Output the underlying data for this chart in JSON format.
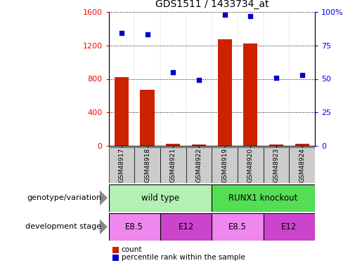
{
  "title": "GDS1511 / 1433734_at",
  "samples": [
    "GSM48917",
    "GSM48918",
    "GSM48921",
    "GSM48922",
    "GSM48919",
    "GSM48920",
    "GSM48923",
    "GSM48924"
  ],
  "counts": [
    820,
    670,
    30,
    20,
    1270,
    1220,
    20,
    30
  ],
  "percentiles": [
    84,
    83,
    55,
    49,
    98,
    97,
    51,
    53
  ],
  "bar_color": "#cc2200",
  "dot_color": "#0000cc",
  "left_ylim": [
    0,
    1600
  ],
  "right_ylim": [
    0,
    100
  ],
  "left_yticks": [
    0,
    400,
    800,
    1200,
    1600
  ],
  "right_yticks": [
    0,
    25,
    50,
    75,
    100
  ],
  "right_yticklabels": [
    "0",
    "25",
    "50",
    "75",
    "100%"
  ],
  "genotype_groups": [
    {
      "label": "wild type",
      "start": 0,
      "end": 4,
      "color": "#b3f0b3"
    },
    {
      "label": "RUNX1 knockout",
      "start": 4,
      "end": 8,
      "color": "#55dd55"
    }
  ],
  "dev_stage_groups": [
    {
      "label": "E8.5",
      "start": 0,
      "end": 2,
      "color": "#ee88ee"
    },
    {
      "label": "E12",
      "start": 2,
      "end": 4,
      "color": "#cc44cc"
    },
    {
      "label": "E8.5",
      "start": 4,
      "end": 6,
      "color": "#ee88ee"
    },
    {
      "label": "E12",
      "start": 6,
      "end": 8,
      "color": "#cc44cc"
    }
  ],
  "label_genotype": "genotype/variation",
  "label_devstage": "development stage",
  "legend_count": "count",
  "legend_percentile": "percentile rank within the sample",
  "sample_box_color": "#cccccc",
  "arrow_color": "#888888"
}
